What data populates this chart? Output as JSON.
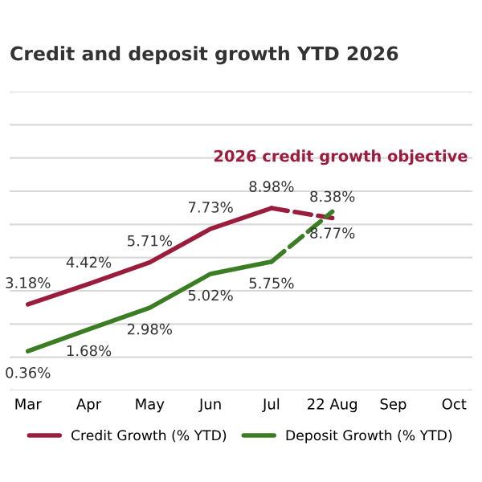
{
  "chart_data": {
    "type": "line",
    "title": "Credit and deposit growth YTD 2026",
    "categories": [
      "Mar",
      "Apr",
      "May",
      "Jun",
      "Jul",
      "22 Aug",
      "Sep",
      "Oct"
    ],
    "series": [
      {
        "name": "Credit Growth (% YTD)",
        "color": "#9b1d3d",
        "line_style": "solid",
        "values": [
          3.18,
          4.42,
          5.71,
          7.73,
          8.98,
          null,
          null,
          null
        ],
        "value_labels": [
          "3.18%",
          "4.42%",
          "5.71%",
          "7.73%",
          "8.98%",
          null,
          null,
          null
        ]
      },
      {
        "color": "#9b1d3d",
        "line_style": "dashed",
        "values": [
          null,
          null,
          null,
          null,
          8.98,
          8.38,
          null,
          null
        ],
        "value_labels": [
          null,
          null,
          null,
          null,
          null,
          "8.38%",
          null,
          null
        ]
      },
      {
        "name": "Deposit Growth (% YTD)",
        "color": "#3b7d23",
        "line_style": "solid",
        "values": [
          0.36,
          1.68,
          2.98,
          5.02,
          5.75,
          null,
          null,
          null
        ],
        "value_labels": [
          "0.36%",
          "1.68%",
          "2.98%",
          "5.02%",
          "5.75%",
          null,
          null,
          null
        ]
      },
      {
        "color": "#3b7d23",
        "line_style": "dashed",
        "values": [
          null,
          null,
          null,
          null,
          5.75,
          8.77,
          null,
          null
        ],
        "value_labels": [
          null,
          null,
          null,
          null,
          null,
          "8.77%",
          null,
          null
        ]
      }
    ],
    "ylim": [
      -2,
      16
    ],
    "yticks": [
      {
        "value": -2,
        "label": null
      },
      {
        "value": 0,
        "label": null
      },
      {
        "value": 2,
        "label": null
      },
      {
        "value": 4,
        "label": null
      },
      {
        "value": 6,
        "label": null
      },
      {
        "value": 8,
        "label": null
      },
      {
        "value": 10,
        "label": null
      },
      {
        "value": 12,
        "label": null
      },
      {
        "value": 14,
        "label": null
      },
      {
        "value": 16,
        "label": null
      }
    ],
    "tick_labels": "x",
    "grid": "y",
    "legend": "bottom",
    "marker": "none",
    "annotations": [
      "2026 credit growth objective"
    ]
  }
}
